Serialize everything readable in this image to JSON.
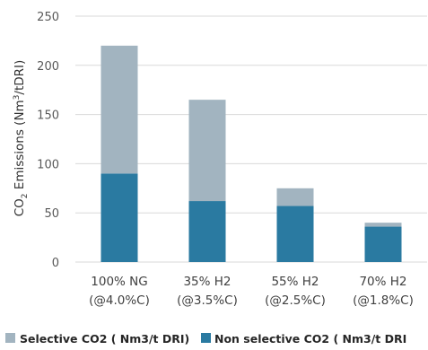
{
  "chart_data": {
    "type": "bar",
    "stacked": true,
    "categories": [
      [
        "100% NG",
        "(@4.0%C)"
      ],
      [
        "35% H2",
        "(@3.5%C)"
      ],
      [
        "55% H2",
        "(@2.5%C)"
      ],
      [
        "70% H2",
        "(@1.8%C)"
      ]
    ],
    "series": [
      {
        "name": "Non selective CO2 ( Nm3/t DRI",
        "color": "#2a7aa1",
        "values": [
          90,
          62,
          57,
          36
        ]
      },
      {
        "name": "Selective CO2 ( Nm3/t DRI)",
        "color": "#a2b4c0",
        "values": [
          130,
          103,
          18,
          4
        ]
      }
    ],
    "legend_order": [
      1,
      0
    ],
    "legend_position": "bottom",
    "ylabel": {
      "prefix": "CO",
      "sub": "2",
      "main": " Emissions (Nm",
      "sup": "3",
      "suffix": "/tDRI)"
    },
    "ylim": [
      0,
      250
    ],
    "yticks": [
      0,
      50,
      100,
      150,
      200,
      250
    ],
    "grid": true
  }
}
